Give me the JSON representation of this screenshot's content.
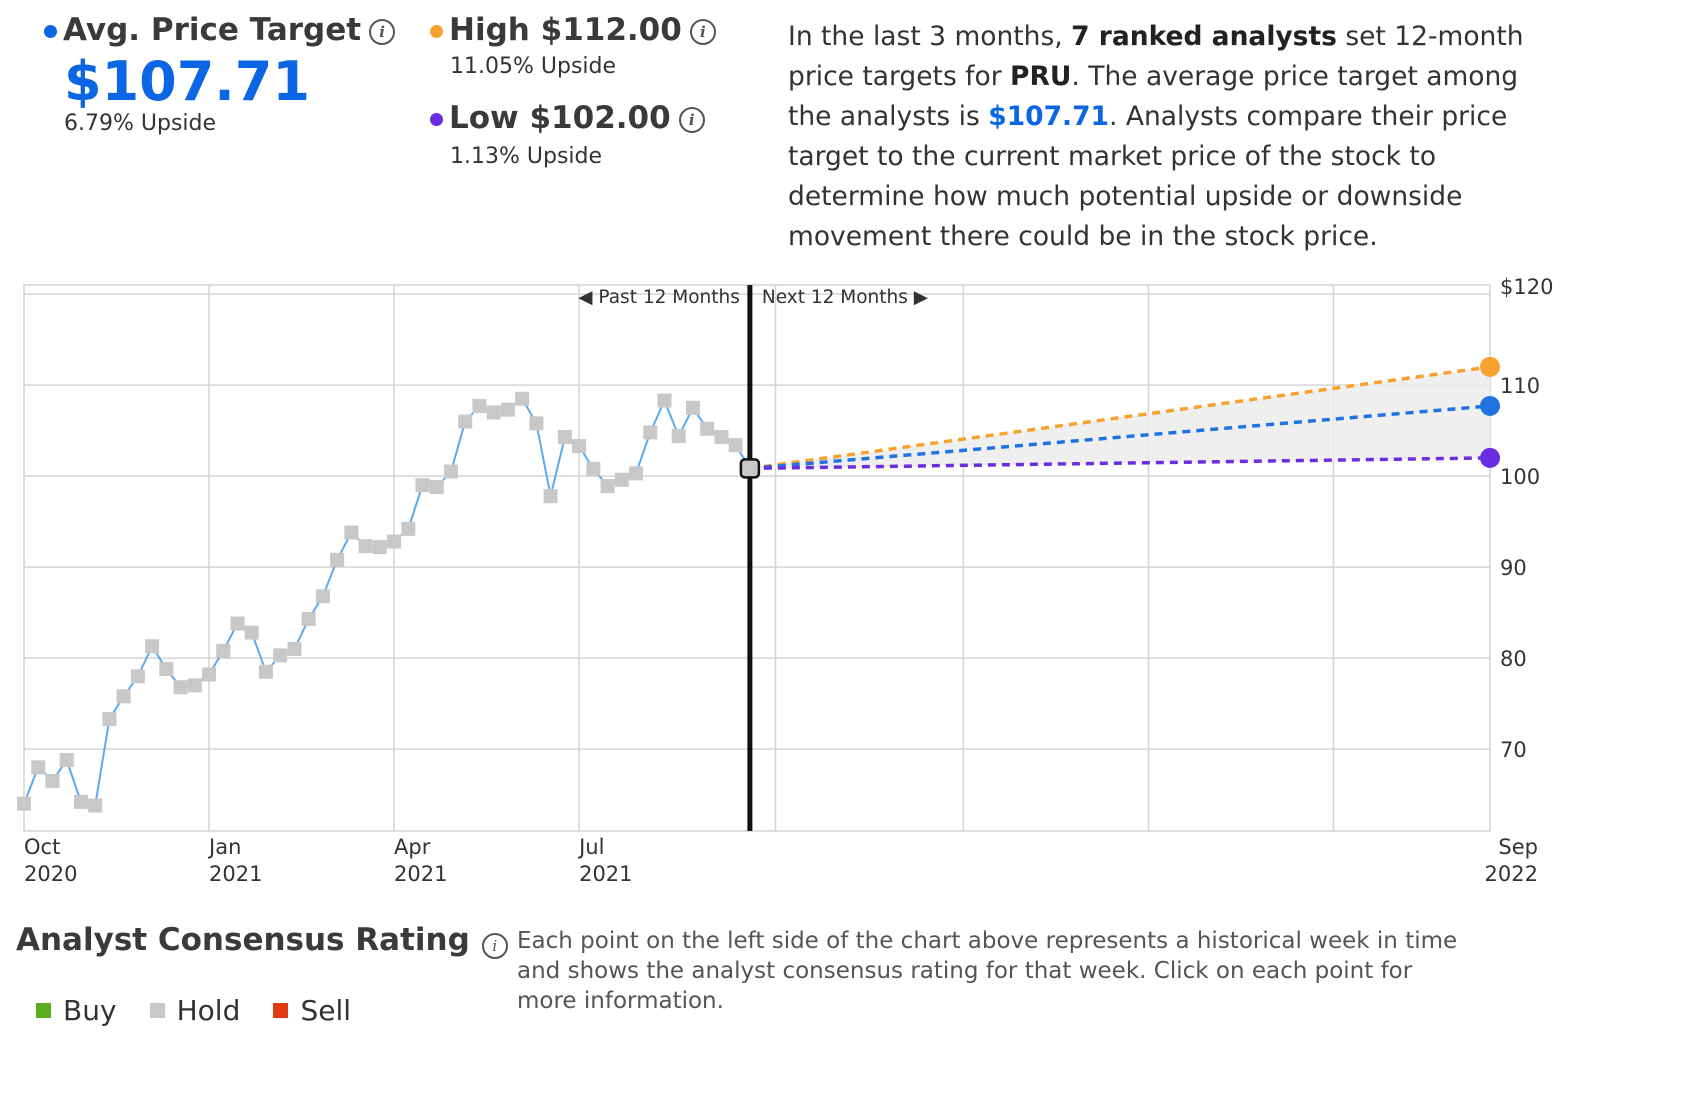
{
  "summary": {
    "avg": {
      "label": "Avg. Price Target",
      "value": "$107.71",
      "upside": "6.79% Upside",
      "color": "#0b66e4"
    },
    "high": {
      "label": "High $112.00",
      "upside": "11.05% Upside",
      "color": "#f7a130"
    },
    "low": {
      "label": "Low $102.00",
      "upside": "1.13% Upside",
      "color": "#6a2ee0"
    },
    "info_icon": "info-icon"
  },
  "description": {
    "p1": "In the last 3 months, ",
    "analysts": "7 ranked analysts",
    "p2": " set 12-month price targets for ",
    "ticker": "PRU",
    "p3": ". The average price target among the analysts is ",
    "avg": "$107.71",
    "p4": ". Analysts compare their price target to the current market price of the stock to determine how much potential upside or downside movement there could be in the stock price."
  },
  "chart_data": {
    "type": "line",
    "past_label": "Past 12 Months",
    "next_label": "Next 12 Months",
    "ylim": [
      61,
      121
    ],
    "y_ticks": [
      {
        "value": 120,
        "label": "$120"
      },
      {
        "value": 110,
        "label": "110"
      },
      {
        "value": 100,
        "label": "100"
      },
      {
        "value": 90,
        "label": "90"
      },
      {
        "value": 80,
        "label": "80"
      },
      {
        "value": 70,
        "label": "70"
      }
    ],
    "x_ticks": [
      {
        "month": "Oct",
        "year": "2020",
        "x": 0
      },
      {
        "month": "Jan",
        "year": "2021",
        "x": 13
      },
      {
        "month": "Apr",
        "year": "2021",
        "x": 26
      },
      {
        "month": "Jul",
        "year": "2021",
        "x": 39
      },
      {
        "month": "Sep",
        "year": "2022",
        "x": 103
      }
    ],
    "history": {
      "name": "Price",
      "color": "#5aaaf0",
      "marker_color": "#c8c8c8",
      "points": [
        [
          0,
          64
        ],
        [
          1,
          68
        ],
        [
          2,
          66.5
        ],
        [
          3,
          68.8
        ],
        [
          4,
          64.2
        ],
        [
          5,
          63.8
        ],
        [
          6,
          73.3
        ],
        [
          7,
          75.8
        ],
        [
          8,
          78
        ],
        [
          9,
          81.3
        ],
        [
          10,
          78.8
        ],
        [
          11,
          76.8
        ],
        [
          12,
          77
        ],
        [
          13,
          78.2
        ],
        [
          14,
          80.8
        ],
        [
          15,
          83.8
        ],
        [
          16,
          82.8
        ],
        [
          17,
          78.5
        ],
        [
          18,
          80.3
        ],
        [
          19,
          81
        ],
        [
          20,
          84.3
        ],
        [
          21,
          86.8
        ],
        [
          22,
          90.8
        ],
        [
          23,
          93.8
        ],
        [
          24,
          92.3
        ],
        [
          25,
          92.2
        ],
        [
          26,
          92.8
        ],
        [
          27,
          94.2
        ],
        [
          28,
          99
        ],
        [
          29,
          98.8
        ],
        [
          30,
          100.5
        ],
        [
          31,
          106
        ],
        [
          32,
          107.7
        ],
        [
          33,
          107
        ],
        [
          34,
          107.3
        ],
        [
          35,
          108.5
        ],
        [
          36,
          105.8
        ],
        [
          37,
          97.8
        ],
        [
          38,
          104.3
        ],
        [
          39,
          103.3
        ],
        [
          40,
          100.8
        ],
        [
          41,
          98.9
        ],
        [
          42,
          99.6
        ],
        [
          43,
          100.3
        ],
        [
          44,
          104.8
        ],
        [
          45,
          108.3
        ],
        [
          46,
          104.4
        ],
        [
          47,
          107.5
        ],
        [
          48,
          105.2
        ],
        [
          49,
          104.3
        ],
        [
          50,
          103.4
        ],
        [
          51,
          100.85
        ]
      ]
    },
    "current": {
      "x": 51,
      "y": 100.85
    },
    "divider_x": 51,
    "forecast": [
      {
        "name": "High",
        "target": 112,
        "color": "#f7a130"
      },
      {
        "name": "Average",
        "target": 107.71,
        "color": "#1f73e0"
      },
      {
        "name": "Low",
        "target": 102,
        "color": "#6a2ee0"
      }
    ],
    "forecast_end_x": 103,
    "xlim": [
      0,
      103
    ]
  },
  "rating": {
    "title": "Analyst Consensus Rating",
    "note": "Each point on the left side of the chart above represents a historical week in time and shows the analyst consensus rating for that week. Click on each point for more information.",
    "legend": [
      {
        "label": "Buy",
        "color": "#5aad1e"
      },
      {
        "label": "Hold",
        "color": "#c8c8c8"
      },
      {
        "label": "Sell",
        "color": "#e03a12"
      }
    ]
  }
}
